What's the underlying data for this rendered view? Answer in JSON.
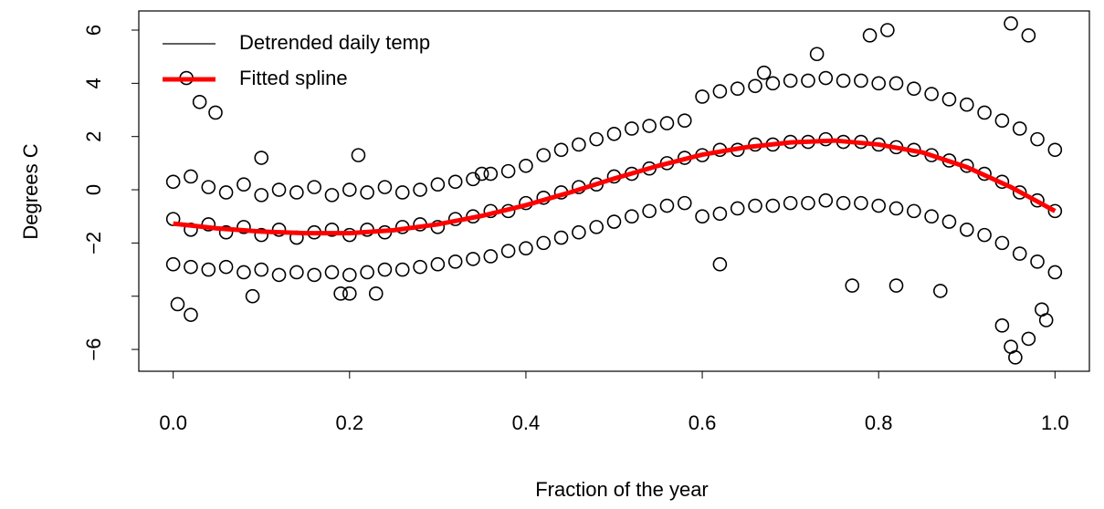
{
  "chart_data": {
    "type": "scatter",
    "x_label": "Fraction of the year",
    "y_label": "Degrees C",
    "xlim": [
      -0.039,
      1.039
    ],
    "ylim": [
      -6.82,
      6.72
    ],
    "xticks": [
      {
        "value": 0,
        "label": "0.0"
      },
      0.2,
      0.4,
      0.6,
      0.8,
      {
        "value": 1,
        "label": "1.0"
      }
    ],
    "yticks": [
      {
        "value": -6,
        "label": "−6"
      },
      {
        "value": -4,
        "label": null
      },
      {
        "value": -2,
        "label": "−2"
      },
      0,
      2,
      4,
      6
    ],
    "legend": "topleft",
    "series": [
      {
        "name": "Detrended daily temp",
        "type": "scatter",
        "color": "#000000",
        "x": [
          0,
          0,
          0,
          0.02,
          0.02,
          0.02,
          0.04,
          0.04,
          0.04,
          0.06,
          0.06,
          0.06,
          0.08,
          0.08,
          0.08,
          0.1,
          0.1,
          0.1,
          0.12,
          0.12,
          0.12,
          0.14,
          0.14,
          0.14,
          0.16,
          0.16,
          0.16,
          0.18,
          0.18,
          0.18,
          0.2,
          0.2,
          0.2,
          0.22,
          0.22,
          0.22,
          0.24,
          0.24,
          0.24,
          0.26,
          0.26,
          0.26,
          0.28,
          0.28,
          0.28,
          0.3,
          0.3,
          0.3,
          0.32,
          0.32,
          0.32,
          0.34,
          0.34,
          0.34,
          0.36,
          0.36,
          0.36,
          0.38,
          0.38,
          0.38,
          0.4,
          0.4,
          0.4,
          0.42,
          0.42,
          0.42,
          0.44,
          0.44,
          0.44,
          0.46,
          0.46,
          0.46,
          0.48,
          0.48,
          0.48,
          0.5,
          0.5,
          0.5,
          0.52,
          0.52,
          0.52,
          0.54,
          0.54,
          0.54,
          0.56,
          0.56,
          0.56,
          0.58,
          0.58,
          0.58,
          0.6,
          0.6,
          0.6,
          0.62,
          0.62,
          0.62,
          0.64,
          0.64,
          0.64,
          0.66,
          0.66,
          0.66,
          0.68,
          0.68,
          0.68,
          0.7,
          0.7,
          0.7,
          0.72,
          0.72,
          0.72,
          0.74,
          0.74,
          0.74,
          0.76,
          0.76,
          0.76,
          0.78,
          0.78,
          0.78,
          0.8,
          0.8,
          0.8,
          0.82,
          0.82,
          0.82,
          0.84,
          0.84,
          0.84,
          0.86,
          0.86,
          0.86,
          0.88,
          0.88,
          0.88,
          0.9,
          0.9,
          0.9,
          0.92,
          0.92,
          0.92,
          0.94,
          0.94,
          0.94,
          0.96,
          0.96,
          0.96,
          0.98,
          0.98,
          0.98,
          1,
          1,
          1,
          0.005,
          0.02,
          0.03,
          0.015,
          0.09,
          0.19,
          0.2,
          0.23,
          0.048,
          0.81,
          0.95,
          0.955,
          0.95,
          0.94,
          0.99,
          0.97,
          0.985,
          0.82,
          0.77,
          0.62,
          0.73,
          0.79,
          0.97,
          0.67,
          0.1,
          0.21,
          0.35,
          0.87
        ],
        "values": [
          0.3,
          -1.1,
          -2.8,
          0.5,
          -1.5,
          -2.9,
          0.1,
          -1.3,
          -3.0,
          -0.1,
          -1.6,
          -2.9,
          0.2,
          -1.4,
          -3.1,
          -0.2,
          -1.7,
          -3.0,
          0.0,
          -1.5,
          -3.2,
          -0.1,
          -1.8,
          -3.1,
          0.1,
          -1.6,
          -3.2,
          -0.2,
          -1.5,
          -3.1,
          0.0,
          -1.7,
          -3.2,
          -0.1,
          -1.5,
          -3.1,
          0.1,
          -1.6,
          -3.0,
          -0.1,
          -1.4,
          -3.0,
          0.0,
          -1.3,
          -2.9,
          0.2,
          -1.4,
          -2.8,
          0.3,
          -1.1,
          -2.7,
          0.4,
          -1.0,
          -2.6,
          0.6,
          -0.8,
          -2.5,
          0.7,
          -0.8,
          -2.3,
          0.9,
          -0.5,
          -2.2,
          1.3,
          -0.3,
          -2.0,
          1.5,
          -0.1,
          -1.8,
          1.7,
          0.1,
          -1.6,
          1.9,
          0.2,
          -1.4,
          2.1,
          0.5,
          -1.2,
          2.3,
          0.6,
          -1.0,
          2.4,
          0.8,
          -0.8,
          2.5,
          1.0,
          -0.6,
          2.6,
          1.2,
          -0.5,
          3.5,
          1.3,
          -1.0,
          3.7,
          1.5,
          -0.9,
          3.8,
          1.5,
          -0.7,
          3.9,
          1.7,
          -0.6,
          4.0,
          1.7,
          -0.6,
          4.1,
          1.8,
          -0.5,
          4.1,
          1.8,
          -0.5,
          4.2,
          1.9,
          -0.4,
          4.1,
          1.8,
          -0.5,
          4.1,
          1.8,
          -0.5,
          4.0,
          1.7,
          -0.6,
          4.0,
          1.6,
          -0.7,
          3.8,
          1.5,
          -0.8,
          3.6,
          1.3,
          -1.0,
          3.4,
          1.1,
          -1.2,
          3.2,
          0.9,
          -1.5,
          2.9,
          0.6,
          -1.7,
          2.6,
          0.3,
          -2.0,
          2.3,
          -0.1,
          -2.4,
          1.9,
          -0.4,
          -2.7,
          1.5,
          -0.8,
          -3.1,
          -4.3,
          -4.7,
          3.3,
          4.2,
          -4.0,
          -3.9,
          -3.9,
          -3.9,
          2.9,
          6.0,
          6.25,
          -6.3,
          -5.9,
          -5.1,
          -4.9,
          -5.6,
          -4.5,
          -3.6,
          -3.6,
          -2.8,
          5.1,
          5.8,
          5.8,
          4.4,
          1.2,
          1.3,
          0.6,
          -3.8
        ]
      },
      {
        "name": "Fitted spline",
        "type": "line",
        "color": "#ff0000",
        "x": [
          0,
          0.05,
          0.1,
          0.15,
          0.2,
          0.25,
          0.3,
          0.35,
          0.4,
          0.45,
          0.5,
          0.55,
          0.6,
          0.65,
          0.7,
          0.75,
          0.8,
          0.85,
          0.9,
          0.95,
          1
        ],
        "values": [
          -1.27,
          -1.45,
          -1.57,
          -1.63,
          -1.63,
          -1.52,
          -1.3,
          -0.98,
          -0.58,
          -0.1,
          0.42,
          0.9,
          1.32,
          1.6,
          1.78,
          1.85,
          1.7,
          1.4,
          0.85,
          0.1,
          -0.8
        ]
      }
    ]
  }
}
